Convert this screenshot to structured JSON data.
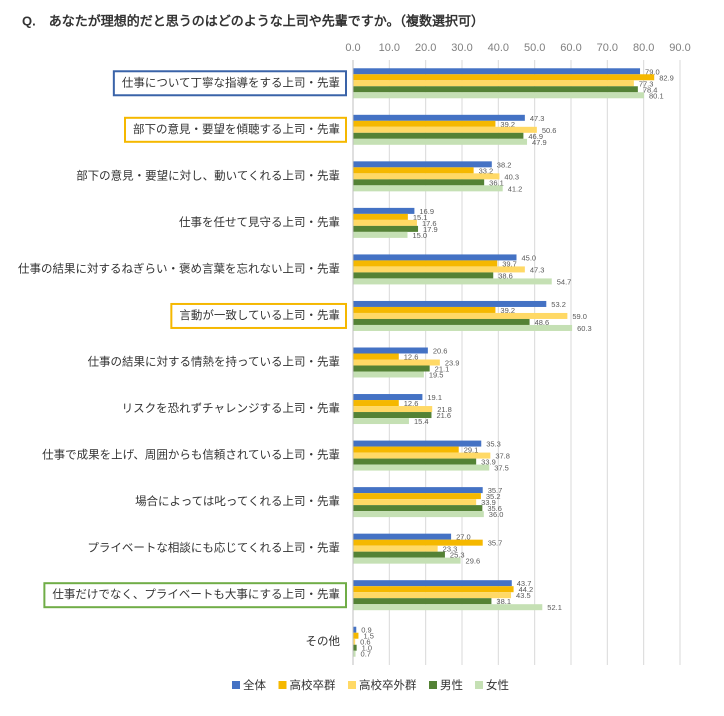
{
  "chart_data": {
    "type": "hbar",
    "title": "Q.　あなたが理想的だと思うのはどのような上司や先輩ですか。（複数選択可）",
    "categories": [
      "仕事について丁寧な指導をする上司・先輩",
      "部下の意見・要望を傾聴する上司・先輩",
      "部下の意見・要望に対し、動いてくれる上司・先輩",
      "仕事を任せて見守る上司・先輩",
      "仕事の結果に対するねぎらい・褒め言葉を忘れない上司・先輩",
      "言動が一致している上司・先輩",
      "仕事の結果に対する情熱を持っている上司・先輩",
      "リスクを恐れずチャレンジする上司・先輩",
      "仕事で成果を上げ、周囲からも信頼されている上司・先輩",
      "場合によっては叱ってくれる上司・先輩",
      "プライベートな相談にも応じてくれる上司・先輩",
      "仕事だけでなく、プライベートも大事にする上司・先輩",
      "その他"
    ],
    "series": [
      {
        "name": "全体",
        "color": "#4472c4",
        "values": [
          79.0,
          47.3,
          38.2,
          16.9,
          45.0,
          53.2,
          20.6,
          19.1,
          35.3,
          35.7,
          27.0,
          43.7,
          0.9
        ],
        "value_labels": [
          "79.0",
          "47.3",
          "38.2",
          "16.9",
          "45.0",
          "53.2",
          "20.6",
          "19.1",
          "35.3",
          "35.7",
          "27.0",
          "43.7",
          "0.9"
        ]
      },
      {
        "name": "高校卒群",
        "color": "#f5b800",
        "values": [
          82.9,
          39.2,
          33.2,
          15.1,
          39.7,
          39.2,
          12.6,
          12.6,
          29.1,
          35.2,
          35.7,
          44.2,
          1.5
        ],
        "value_labels": [
          "82.9",
          "39.2",
          "33.2",
          "15.1",
          "39.7",
          "39.2",
          "12.6",
          "12.6",
          "29.1",
          "35.2",
          "35.7",
          "44.2",
          "1.5"
        ]
      },
      {
        "name": "高校卒外群",
        "color": "#ffd966",
        "values": [
          77.3,
          50.6,
          40.3,
          17.6,
          47.3,
          59.0,
          23.9,
          21.8,
          37.8,
          33.9,
          23.3,
          43.5,
          0.6
        ],
        "value_labels": [
          "77.3",
          "50.6",
          "40.3",
          "17.6",
          "47.3",
          "59.0",
          "23.9",
          "21.8",
          "37.8",
          "33.9",
          "23.3",
          "43.5",
          "0.6"
        ]
      },
      {
        "name": "男性",
        "color": "#548235",
        "values": [
          78.4,
          46.9,
          36.1,
          17.9,
          38.6,
          48.6,
          21.1,
          21.6,
          33.9,
          35.6,
          25.3,
          38.1,
          1.0
        ],
        "value_labels": [
          "78.4",
          "46.9",
          "36.1",
          "17.9",
          "38.6",
          "48.6",
          "21.1",
          "21.6",
          "33.9",
          "35.6",
          "25.3",
          "38.1",
          "1.0"
        ]
      },
      {
        "name": "女性",
        "color": "#c5e0b4",
        "values": [
          80.1,
          47.9,
          41.2,
          15.0,
          54.7,
          60.3,
          19.5,
          15.4,
          37.5,
          36.0,
          29.6,
          52.1,
          0.7
        ],
        "value_labels": [
          "80.1",
          "47.9",
          "41.2",
          "15.0",
          "54.7",
          "60.3",
          "19.5",
          "15.4",
          "37.5",
          "36.0",
          "29.6",
          "52.1",
          "0.7"
        ]
      }
    ],
    "xlim": [
      0,
      90
    ],
    "xticks": [
      {
        "value": 0,
        "label": "0.0"
      },
      {
        "value": 10,
        "label": "10.0"
      },
      {
        "value": 20,
        "label": "20.0"
      },
      {
        "value": 30,
        "label": "30.0"
      },
      {
        "value": 40,
        "label": "40.0"
      },
      {
        "value": 50,
        "label": "50.0"
      },
      {
        "value": 60,
        "label": "60.0"
      },
      {
        "value": 70,
        "label": "70.0"
      },
      {
        "value": 80,
        "label": "80.0"
      },
      {
        "value": 90,
        "label": "90.0"
      }
    ],
    "grid": true,
    "legend": "bottom",
    "highlights": [
      {
        "index": 0,
        "color": "#3a63a8"
      },
      {
        "index": 1,
        "color": "#f5b800"
      },
      {
        "index": 5,
        "color": "#f5b800"
      },
      {
        "index": 11,
        "color": "#70ad47"
      }
    ]
  }
}
